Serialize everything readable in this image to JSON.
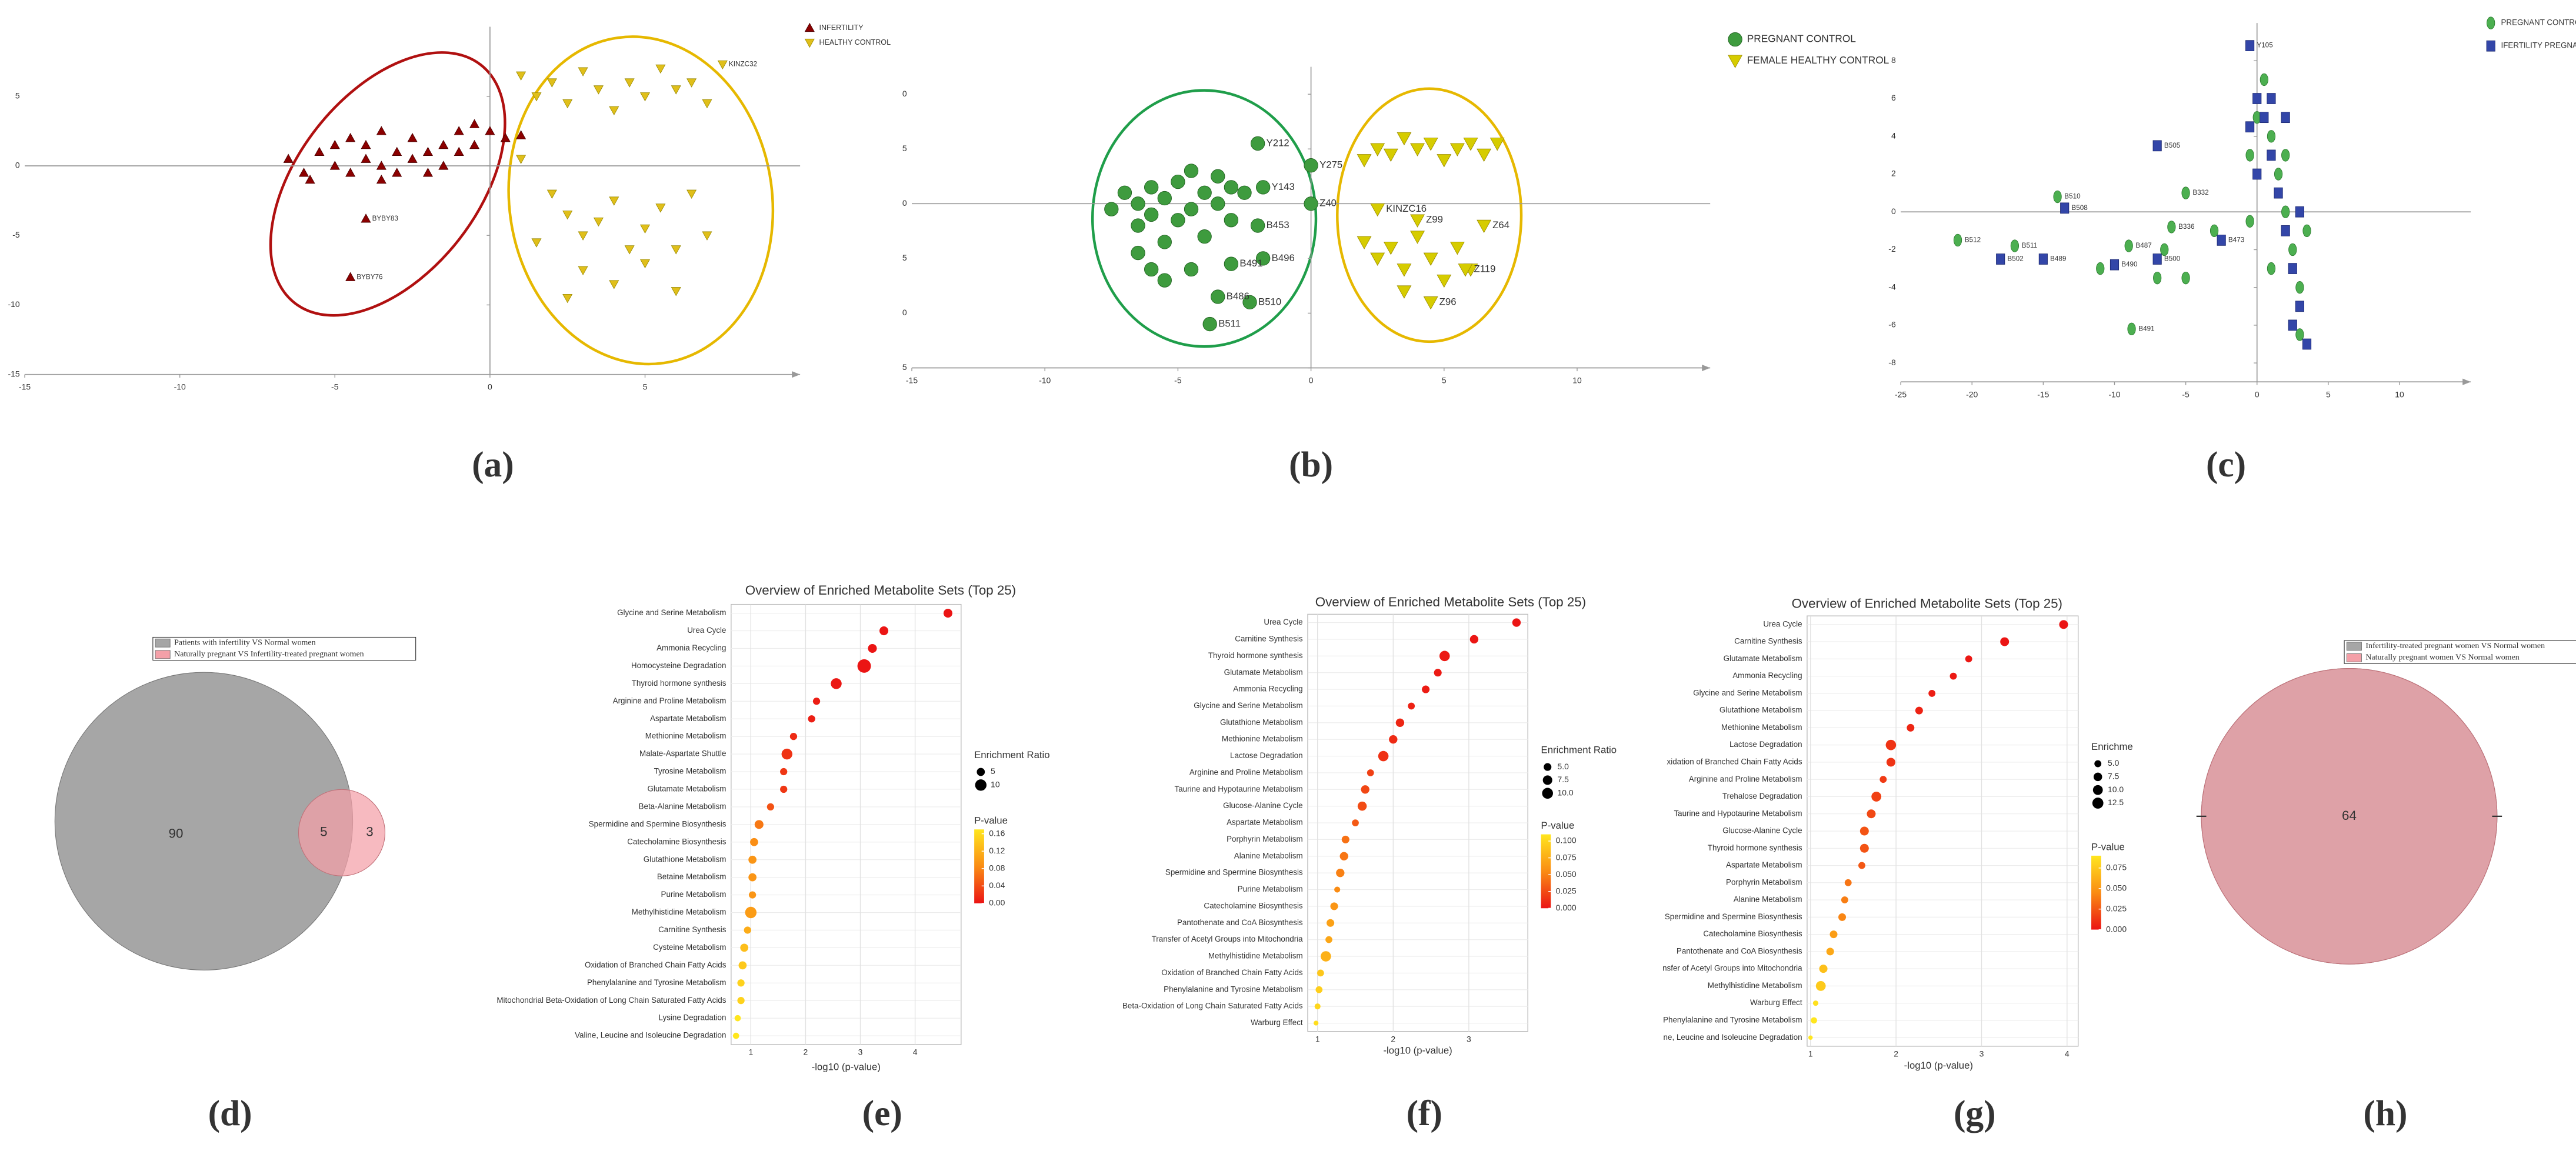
{
  "chart_data": [
    {
      "type": "scatter",
      "panel_label": "(a)",
      "xlim": [
        -15,
        10
      ],
      "ylim": [
        -15,
        10
      ],
      "xticks": [
        -15,
        -10,
        -5,
        0,
        5
      ],
      "yticks": [
        -15,
        -10,
        -5,
        0,
        5
      ],
      "legend": "top-right",
      "series": [
        {
          "name": "INFERTILITY",
          "color": "#8b0000",
          "marker": "triangle-up",
          "x": [
            -6.5,
            -6,
            -5.5,
            -5,
            -5,
            -4.5,
            -4.5,
            -4,
            -4,
            -3.5,
            -3.5,
            -3.5,
            -3,
            -3,
            -2.5,
            -2.5,
            -2,
            -2,
            -1.5,
            -1.5,
            -1,
            -1,
            -0.5,
            -0.5,
            0,
            0.5,
            1,
            -5.8,
            -4,
            -4.5
          ],
          "y": [
            0.5,
            -0.5,
            1,
            0,
            1.5,
            -0.5,
            2,
            0.5,
            1.5,
            -1,
            0,
            2.5,
            1,
            -0.5,
            0.5,
            2,
            1,
            -0.5,
            1.5,
            0,
            2.5,
            1,
            3,
            1.5,
            2.5,
            2,
            2.2,
            -1,
            -3.8,
            -8
          ],
          "labels": [
            null,
            null,
            null,
            null,
            null,
            null,
            null,
            null,
            null,
            null,
            null,
            null,
            null,
            null,
            null,
            null,
            null,
            null,
            null,
            null,
            null,
            null,
            null,
            null,
            null,
            null,
            null,
            null,
            "BYBY83",
            "BYBY76"
          ]
        },
        {
          "name": "HEALTHY CONTROL",
          "color": "#e0bf1a",
          "marker": "triangle-down",
          "x": [
            1,
            1.5,
            2,
            2.5,
            3,
            3.5,
            4,
            4.5,
            5,
            5.5,
            6,
            6.5,
            7,
            7.5,
            2,
            2.5,
            3,
            3.5,
            4,
            4.5,
            5,
            5.5,
            6,
            6.5,
            7,
            3,
            4,
            5,
            6,
            1,
            1.5,
            2.5
          ],
          "y": [
            6.5,
            5,
            6,
            4.5,
            6.8,
            5.5,
            4,
            6,
            5,
            7,
            5.5,
            6,
            4.5,
            7.3,
            -2,
            -3.5,
            -5,
            -4,
            -2.5,
            -6,
            -4.5,
            -3,
            -6,
            -2,
            -5,
            -7.5,
            -8.5,
            -7,
            -9,
            0.5,
            -5.5,
            -9.5
          ],
          "labels": [
            null,
            null,
            null,
            null,
            null,
            null,
            null,
            null,
            null,
            null,
            null,
            null,
            null,
            "KINZC32",
            null,
            null,
            null,
            null,
            null,
            null,
            null,
            null,
            null,
            null,
            null,
            null,
            null,
            null,
            null,
            null,
            null,
            null
          ]
        }
      ]
    },
    {
      "type": "scatter",
      "panel_label": "(b)",
      "xlim": [
        -15,
        15
      ],
      "ylim": [
        -15,
        12.5
      ],
      "xticks": [
        -15,
        -10,
        -5,
        0,
        5,
        10
      ],
      "yticks": [
        {
          "value": 10,
          "label": "0"
        },
        5,
        0,
        {
          "value": -5,
          "label": "5"
        },
        {
          "value": -10,
          "label": "0"
        },
        {
          "value": -15,
          "label": "5"
        }
      ],
      "legend": "top-right",
      "series": [
        {
          "name": "PREGNANT CONTROL",
          "color": "#3e9b3e",
          "marker": "circle",
          "x": [
            -7.5,
            -7,
            -6.5,
            -6.5,
            -6,
            -6,
            -5.5,
            -5.5,
            -5,
            -5,
            -4.5,
            -4.5,
            -4,
            -4,
            -3.5,
            -3.5,
            -3,
            -3,
            -2.5,
            -6,
            -5.5,
            -4.5,
            -6.5,
            -2,
            -2,
            -1.8,
            -2.3,
            -3.8,
            -3.5,
            -3,
            0,
            -1.8,
            0
          ],
          "y": [
            -0.5,
            1,
            0,
            -2,
            1.5,
            -1,
            -3.5,
            0.5,
            2,
            -1.5,
            3,
            -0.5,
            1,
            -3,
            2.5,
            0,
            1.5,
            -1.5,
            1,
            -6,
            -7,
            -6,
            -4.5,
            5.5,
            -2,
            -5,
            -9,
            -11,
            -8.5,
            -5.5,
            3.5,
            1.5,
            0
          ],
          "labels": [
            null,
            null,
            null,
            null,
            null,
            null,
            null,
            null,
            null,
            null,
            null,
            null,
            null,
            null,
            null,
            null,
            null,
            null,
            null,
            null,
            null,
            null,
            null,
            "Y212",
            "B453",
            "B496",
            "B510",
            "B511",
            "B486",
            "B491",
            "Y275",
            "Y143",
            "Z40"
          ]
        },
        {
          "name": "FEMALE HEALTHY CONTROL",
          "color": "#d6cc00",
          "marker": "triangle-down",
          "x": [
            2,
            2.5,
            3,
            3.5,
            4,
            4.5,
            5,
            5.5,
            6,
            6.5,
            7,
            2.5,
            2,
            2.5,
            3,
            3.5,
            4,
            4.5,
            5,
            5.5,
            6,
            6.5,
            3.5,
            4.5,
            5.8,
            4
          ],
          "y": [
            4,
            5,
            4.5,
            6,
            5,
            5.5,
            4,
            5,
            5.5,
            4.5,
            5.5,
            -0.5,
            -3.5,
            -5,
            -4,
            -6,
            -3,
            -5,
            -7,
            -4,
            -6,
            -2,
            -8,
            -9,
            -6,
            -1.5
          ],
          "labels": [
            null,
            null,
            null,
            null,
            null,
            null,
            null,
            null,
            null,
            null,
            null,
            "KINZC16",
            null,
            null,
            null,
            null,
            null,
            null,
            null,
            null,
            null,
            "Z64",
            null,
            "Z96",
            "Z119",
            "Z99"
          ]
        }
      ]
    },
    {
      "type": "scatter",
      "panel_label": "(c)",
      "xlim": [
        -25,
        15
      ],
      "ylim": [
        -9,
        10
      ],
      "xticks": [
        -25,
        -20,
        -15,
        -10,
        -5,
        0,
        5,
        10
      ],
      "yticks": [
        -8,
        -6,
        -4,
        -2,
        0,
        2,
        4,
        6,
        8
      ],
      "legend": "top-right",
      "series": [
        {
          "name": "PREGNANT CONTROL",
          "color": "#4caf50",
          "marker": "ellipse",
          "x": [
            -21,
            -17,
            -14,
            -9,
            -5,
            -6,
            -8.8,
            -7,
            -6.5,
            -5,
            -3,
            -11,
            0,
            0.5,
            1,
            1.5,
            2,
            2.5,
            3,
            3.5,
            -0.5,
            1,
            2,
            -0.5,
            3
          ],
          "y": [
            -1.5,
            -1.8,
            0.8,
            -1.8,
            1,
            -0.8,
            -6.2,
            -3.5,
            -2,
            -3.5,
            -1,
            -3,
            5,
            7,
            4,
            2,
            0,
            -2,
            -4,
            -1,
            3,
            -3,
            3,
            -0.5,
            -6.5
          ],
          "labels": [
            "B512",
            "B511",
            "B510",
            "B487",
            "B332",
            "B336",
            "B491",
            null,
            null,
            null,
            null,
            null,
            null,
            null,
            null,
            null,
            null,
            null,
            null,
            null,
            null,
            null,
            null,
            null,
            null
          ]
        },
        {
          "name": "IFERTILITY PREGNANT",
          "color": "#3346a8",
          "marker": "square",
          "x": [
            -0.5,
            -7,
            -13.5,
            -18,
            -15,
            -10,
            -7,
            -2.5,
            0,
            0.5,
            1,
            1.5,
            2,
            2.5,
            3,
            3.5,
            -0.5,
            1,
            2,
            0,
            3,
            2.5
          ],
          "y": [
            8.8,
            3.5,
            0.2,
            -2.5,
            -2.5,
            -2.8,
            -2.5,
            -1.5,
            6,
            5,
            3,
            1,
            -1,
            -3,
            -5,
            -7,
            4.5,
            6,
            5,
            2,
            0,
            -6
          ],
          "labels": [
            "Y105",
            "B505",
            "B508",
            "B502",
            "B489",
            "B490",
            "B500",
            "B473",
            null,
            null,
            null,
            null,
            null,
            null,
            null,
            null,
            null,
            null,
            null,
            null,
            null,
            null
          ]
        }
      ]
    },
    {
      "type": "venn",
      "panel_label": "(d)",
      "sets": [
        {
          "name": "Patients with infertility VS Normal women",
          "color": "#a6a6a6"
        },
        {
          "name": "Naturally pregnant VS Infertility-treated pregnant women",
          "color": "#f4a0a8"
        }
      ],
      "values": [
        90,
        5,
        3
      ]
    },
    {
      "type": "dot",
      "panel_label": "(e)",
      "title": "Overview of Enriched Metabolite Sets (Top 25)",
      "xlabel": "-log10 (p-value)",
      "categories": [
        "Glycine and Serine Metabolism",
        "Urea Cycle",
        "Ammonia Recycling",
        "Homocysteine Degradation",
        "Thyroid hormone synthesis",
        "Arginine and Proline Metabolism",
        "Aspartate Metabolism",
        "Methionine Metabolism",
        "Malate-Aspartate Shuttle",
        "Tyrosine Metabolism",
        "Glutamate Metabolism",
        "Beta-Alanine Metabolism",
        "Spermidine and Spermine Biosynthesis",
        "Catecholamine Biosynthesis",
        "Glutathione Metabolism",
        "Betaine Metabolism",
        "Purine Metabolism",
        "Methylhistidine Metabolism",
        "Carnitine Synthesis",
        "Cysteine Metabolism",
        "Oxidation of Branched Chain Fatty Acids",
        "Phenylalanine and Tyrosine Metabolism",
        "Mitochondrial Beta-Oxidation of Long Chain Saturated Fatty Acids",
        "Lysine Degradation",
        "Valine, Leucine and Isoleucine Degradation"
      ],
      "values": [
        4.6,
        3.43,
        3.22,
        3.07,
        2.56,
        2.2,
        2.11,
        1.78,
        1.66,
        1.6,
        1.6,
        1.36,
        1.15,
        1.06,
        1.03,
        1.03,
        1.03,
        1.0,
        0.94,
        0.88,
        0.85,
        0.82,
        0.82,
        0.76,
        0.73
      ],
      "sizes": [
        6,
        6,
        6,
        14,
        9,
        4,
        4,
        4,
        9,
        4,
        4,
        4,
        6,
        5,
        5,
        5,
        4,
        10,
        4,
        5,
        5,
        4,
        4,
        3,
        3
      ],
      "xlim": [
        0.64,
        4.84
      ],
      "xticks": [
        1,
        2,
        3,
        4
      ],
      "grid": true,
      "size_legend_title": "Enrichment Ratio",
      "size_ticks": [
        5,
        10
      ],
      "color_legend_title": "P-value",
      "clim": [
        0,
        0.17
      ],
      "color_ticks": [
        0.16,
        0.12,
        0.08,
        0.04,
        {
          "value": 0,
          "label": "0.00"
        }
      ]
    },
    {
      "type": "dot",
      "panel_label": "(f)",
      "title": "Overview of Enriched Metabolite Sets (Top 25)",
      "xlabel": "-log10 (p-value)",
      "categories": [
        "Urea Cycle",
        "Carnitine Synthesis",
        "Thyroid hormone synthesis",
        "Glutamate Metabolism",
        "Ammonia Recycling",
        "Glycine and Serine Metabolism",
        "Glutathione Metabolism",
        "Methionine Metabolism",
        "Lactose Degradation",
        "Arginine and Proline Metabolism",
        "Taurine and Hypotaurine Metabolism",
        "Glucose-Alanine Cycle",
        "Aspartate Metabolism",
        "Porphyrin Metabolism",
        "Alanine Metabolism",
        "Spermidine and Spermine Biosynthesis",
        "Purine Metabolism",
        "Catecholamine Biosynthesis",
        "Pantothenate and CoA Biosynthesis",
        "Transfer of Acetyl Groups into Mitochondria",
        "Methylhistidine Metabolism",
        "Oxidation of Branched Chain Fatty Acids",
        "Phenylalanine and Tyrosine Metabolism",
        "Beta-Oxidation of Long Chain Saturated Fatty Acids",
        "Warburg Effect"
      ],
      "values": [
        3.63,
        3.07,
        2.68,
        2.59,
        2.43,
        2.24,
        2.09,
        2.0,
        1.87,
        1.7,
        1.63,
        1.59,
        1.5,
        1.37,
        1.35,
        1.3,
        1.26,
        1.22,
        1.17,
        1.15,
        1.11,
        1.04,
        1.02,
        1.0,
        0.98
      ],
      "sizes": [
        6,
        6,
        9,
        5,
        5,
        4,
        6,
        6,
        9,
        4,
        6,
        7,
        4,
        5,
        6,
        6,
        3,
        5,
        5,
        4,
        9,
        4,
        4,
        3,
        2
      ],
      "xlim": [
        0.87,
        3.78
      ],
      "xticks": [
        1,
        2,
        3
      ],
      "grid": true,
      "size_legend_title": "Enrichment Ratio",
      "size_ticks": [
        {
          "value": 5,
          "label": "5.0"
        },
        7.5,
        {
          "value": 10,
          "label": "10.0"
        }
      ],
      "color_legend_title": "P-value",
      "clim": [
        0,
        0.11
      ],
      "color_ticks": [
        {
          "value": 0.1,
          "label": "0.100"
        },
        0.075,
        {
          "value": 0.05,
          "label": "0.050"
        },
        0.025,
        {
          "value": 0,
          "label": "0.000"
        }
      ]
    },
    {
      "type": "dot",
      "panel_label": "(g)",
      "title": "Overview of Enriched Metabolite Sets (Top 25)",
      "xlabel": "-log10 (p-value)",
      "categories": [
        "Urea Cycle",
        "Carnitine Synthesis",
        "Glutamate Metabolism",
        "Ammonia Recycling",
        "Glycine and Serine Metabolism",
        "Glutathione Metabolism",
        "Methionine Metabolism",
        "Lactose Degradation",
        "xidation of Branched Chain Fatty Acids",
        "Arginine and Proline Metabolism",
        "Trehalose Degradation",
        "Taurine and Hypotaurine Metabolism",
        "Glucose-Alanine Cycle",
        "Thyroid hormone synthesis",
        "Aspartate Metabolism",
        "Porphyrin Metabolism",
        "Alanine Metabolism",
        "Spermidine and Spermine Biosynthesis",
        "Catecholamine Biosynthesis",
        "Pantothenate and CoA Biosynthesis",
        "nsfer of Acetyl Groups into Mitochondria",
        "Methylhistidine Metabolism",
        "Warburg Effect",
        "Phenylalanine and Tyrosine Metabolism",
        "ne, Leucine and Isoleucine Degradation"
      ],
      "values": [
        3.96,
        3.27,
        2.85,
        2.67,
        2.42,
        2.27,
        2.17,
        1.94,
        1.94,
        1.85,
        1.77,
        1.71,
        1.63,
        1.63,
        1.6,
        1.44,
        1.4,
        1.37,
        1.27,
        1.23,
        1.15,
        1.12,
        1.06,
        1.04,
        1.0
      ],
      "sizes": [
        8,
        8,
        5,
        5,
        5,
        6,
        6,
        11,
        8,
        5,
        10,
        8,
        8,
        8,
        5,
        5,
        5,
        6,
        6,
        6,
        7,
        10,
        3,
        4,
        2
      ],
      "xlim": [
        0.96,
        4.13
      ],
      "xticks": [
        1,
        2,
        3,
        4
      ],
      "grid": true,
      "size_legend_title": "Enrichme",
      "size_ticks": [
        {
          "value": 5,
          "label": "5.0"
        },
        7.5,
        {
          "value": 10,
          "label": "10.0"
        },
        12.5
      ],
      "color_legend_title": "P-value",
      "clim": [
        0,
        0.09
      ],
      "color_ticks": [
        0.075,
        {
          "value": 0.05,
          "label": "0.050"
        },
        0.025,
        {
          "value": 0,
          "label": "0.000"
        }
      ]
    },
    {
      "type": "venn",
      "panel_label": "(h)",
      "sets": [
        {
          "name": "Infertility-treated pregnant women VS Normal women",
          "color": "#a6a6a6"
        },
        {
          "name": "Naturally pregnant women VS Normal women",
          "color": "#f4a0a8"
        }
      ],
      "values": [
        null,
        64,
        null
      ]
    }
  ]
}
